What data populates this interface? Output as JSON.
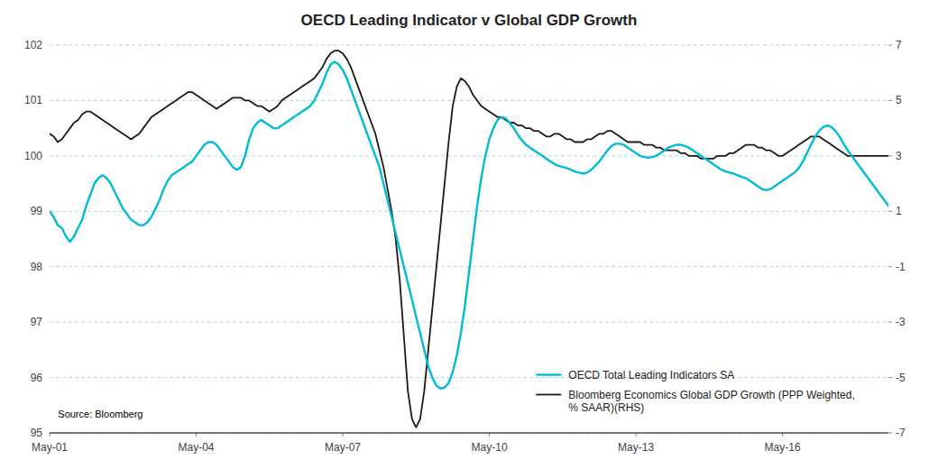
{
  "chart_data": {
    "type": "line",
    "title": "OECD Leading Indicator v Global GDP Growth",
    "annotations": [
      "Source: Bloomberg"
    ],
    "categories": [
      "May-01",
      null,
      null,
      null,
      null,
      null,
      null,
      null,
      null,
      null,
      null,
      null,
      null,
      null,
      null,
      null,
      null,
      null,
      null,
      null,
      null,
      null,
      null,
      null,
      null,
      null,
      null,
      null,
      null,
      null,
      null,
      null,
      null,
      null,
      null,
      null,
      "May-04",
      null,
      null,
      null,
      null,
      null,
      null,
      null,
      null,
      null,
      null,
      null,
      null,
      null,
      null,
      null,
      null,
      null,
      null,
      null,
      null,
      null,
      null,
      null,
      null,
      null,
      null,
      null,
      null,
      null,
      null,
      null,
      null,
      null,
      null,
      null,
      "May-07",
      null,
      null,
      null,
      null,
      null,
      null,
      null,
      null,
      null,
      null,
      null,
      null,
      null,
      null,
      null,
      null,
      null,
      null,
      null,
      null,
      null,
      null,
      null,
      null,
      null,
      null,
      null,
      null,
      null,
      null,
      null,
      null,
      null,
      null,
      null,
      "May-10",
      null,
      null,
      null,
      null,
      null,
      null,
      null,
      null,
      null,
      null,
      null,
      null,
      null,
      null,
      null,
      null,
      null,
      null,
      null,
      null,
      null,
      null,
      null,
      null,
      null,
      null,
      null,
      null,
      null,
      null,
      null,
      null,
      null,
      null,
      null,
      "May-13",
      null,
      null,
      null,
      null,
      null,
      null,
      null,
      null,
      null,
      null,
      null,
      null,
      null,
      null,
      null,
      null,
      null,
      null,
      null,
      null,
      null,
      null,
      null,
      null,
      null,
      null,
      null,
      null,
      null,
      null,
      null,
      null,
      null,
      null,
      null,
      "May-16",
      null,
      null,
      null,
      null,
      null,
      null,
      null,
      null,
      null,
      null,
      null,
      null,
      null,
      null,
      null,
      null,
      null,
      null,
      null,
      null,
      null,
      null,
      null,
      null,
      null,
      null
    ],
    "series": [
      {
        "name": "OECD Total Leading Indicators SA",
        "color": "#00bcd4",
        "axis": "y",
        "values": [
          99.0,
          98.9,
          98.75,
          98.7,
          98.55,
          98.45,
          98.55,
          98.7,
          98.85,
          99.1,
          99.3,
          99.5,
          99.6,
          99.65,
          99.6,
          99.5,
          99.35,
          99.2,
          99.05,
          98.95,
          98.85,
          98.8,
          98.75,
          98.75,
          98.8,
          98.9,
          99.05,
          99.2,
          99.4,
          99.55,
          99.65,
          99.7,
          99.75,
          99.8,
          99.85,
          99.9,
          100.0,
          100.1,
          100.2,
          100.25,
          100.25,
          100.2,
          100.1,
          100.0,
          99.9,
          99.8,
          99.75,
          99.8,
          100.0,
          100.3,
          100.5,
          100.6,
          100.65,
          100.6,
          100.55,
          100.5,
          100.5,
          100.55,
          100.6,
          100.65,
          100.7,
          100.75,
          100.8,
          100.85,
          100.9,
          101.0,
          101.15,
          101.3,
          101.5,
          101.65,
          101.7,
          101.65,
          101.55,
          101.4,
          101.2,
          101.0,
          100.8,
          100.6,
          100.4,
          100.2,
          100.0,
          99.8,
          99.5,
          99.2,
          98.9,
          98.6,
          98.3,
          98.0,
          97.7,
          97.4,
          97.1,
          96.8,
          96.5,
          96.2,
          96.0,
          95.85,
          95.8,
          95.82,
          95.9,
          96.1,
          96.4,
          96.8,
          97.3,
          97.9,
          98.5,
          99.1,
          99.6,
          100.0,
          100.3,
          100.5,
          100.65,
          100.7,
          100.68,
          100.6,
          100.5,
          100.38,
          100.28,
          100.2,
          100.15,
          100.1,
          100.05,
          100.0,
          99.95,
          99.9,
          99.85,
          99.82,
          99.8,
          99.78,
          99.75,
          99.72,
          99.7,
          99.68,
          99.7,
          99.75,
          99.82,
          99.9,
          100.0,
          100.1,
          100.18,
          100.22,
          100.22,
          100.2,
          100.15,
          100.1,
          100.05,
          100.0,
          99.98,
          99.97,
          99.98,
          100.0,
          100.05,
          100.1,
          100.15,
          100.18,
          100.2,
          100.2,
          100.18,
          100.15,
          100.1,
          100.05,
          100.0,
          99.95,
          99.9,
          99.85,
          99.8,
          99.75,
          99.72,
          99.7,
          99.68,
          99.65,
          99.62,
          99.6,
          99.55,
          99.5,
          99.45,
          99.4,
          99.38,
          99.4,
          99.45,
          99.5,
          99.55,
          99.6,
          99.65,
          99.7,
          99.78,
          99.9,
          100.05,
          100.2,
          100.35,
          100.45,
          100.52,
          100.55,
          100.52,
          100.45,
          100.35,
          100.22,
          100.1,
          100.0,
          99.9,
          99.8,
          99.7,
          99.6,
          99.5,
          99.4,
          99.3,
          99.2,
          99.1
        ]
      },
      {
        "name": "Bloomberg Economics Global GDP Growth (PPP Weighted,\n% SAAR)(RHS)",
        "color": "#1a1a1a",
        "axis": "y2",
        "values": [
          3.8,
          3.7,
          3.5,
          3.6,
          3.8,
          4.0,
          4.2,
          4.3,
          4.5,
          4.6,
          4.6,
          4.5,
          4.4,
          4.3,
          4.2,
          4.1,
          4.0,
          3.9,
          3.8,
          3.7,
          3.6,
          3.7,
          3.8,
          4.0,
          4.2,
          4.4,
          4.5,
          4.6,
          4.7,
          4.8,
          4.9,
          5.0,
          5.1,
          5.2,
          5.3,
          5.3,
          5.2,
          5.1,
          5.0,
          4.9,
          4.8,
          4.7,
          4.8,
          4.9,
          5.0,
          5.1,
          5.1,
          5.1,
          5.0,
          5.0,
          4.9,
          4.8,
          4.8,
          4.7,
          4.6,
          4.7,
          4.8,
          5.0,
          5.1,
          5.2,
          5.3,
          5.4,
          5.5,
          5.6,
          5.7,
          5.8,
          6.0,
          6.2,
          6.5,
          6.7,
          6.8,
          6.8,
          6.7,
          6.5,
          6.2,
          5.8,
          5.4,
          5.0,
          4.6,
          4.2,
          3.8,
          3.2,
          2.6,
          1.8,
          1.0,
          0.0,
          -1.5,
          -3.5,
          -5.5,
          -6.5,
          -6.8,
          -6.5,
          -5.5,
          -4.0,
          -2.5,
          -1.0,
          0.5,
          2.0,
          3.5,
          4.8,
          5.5,
          5.8,
          5.7,
          5.5,
          5.2,
          5.0,
          4.8,
          4.7,
          4.6,
          4.5,
          4.4,
          4.4,
          4.3,
          4.2,
          4.2,
          4.1,
          4.1,
          4.0,
          4.0,
          3.9,
          3.9,
          3.8,
          3.7,
          3.7,
          3.8,
          3.8,
          3.7,
          3.6,
          3.6,
          3.5,
          3.5,
          3.5,
          3.6,
          3.6,
          3.7,
          3.8,
          3.8,
          3.9,
          3.9,
          3.8,
          3.7,
          3.6,
          3.5,
          3.5,
          3.5,
          3.5,
          3.4,
          3.4,
          3.4,
          3.3,
          3.3,
          3.2,
          3.2,
          3.2,
          3.2,
          3.1,
          3.1,
          3.0,
          3.0,
          3.0,
          2.9,
          2.9,
          2.9,
          2.9,
          3.0,
          3.0,
          3.0,
          3.1,
          3.1,
          3.2,
          3.3,
          3.4,
          3.4,
          3.4,
          3.3,
          3.3,
          3.2,
          3.2,
          3.1,
          3.0,
          3.0,
          3.1,
          3.2,
          3.3,
          3.4,
          3.5,
          3.6,
          3.7,
          3.7,
          3.7,
          3.6,
          3.5,
          3.4,
          3.3,
          3.2,
          3.1,
          3.0,
          3.0,
          3.0,
          3.0,
          3.0,
          3.0,
          3.0,
          3.0,
          3.0,
          3.0,
          3.0
        ]
      }
    ],
    "ylim": [
      95,
      102
    ],
    "yticks": [
      95,
      96,
      97,
      98,
      99,
      100,
      101,
      102
    ],
    "y2lim": [
      -7,
      7
    ],
    "y2ticks": [
      -7,
      -5,
      -3,
      -1,
      1,
      3,
      5,
      7
    ],
    "grid": true,
    "legend": "lower right"
  }
}
